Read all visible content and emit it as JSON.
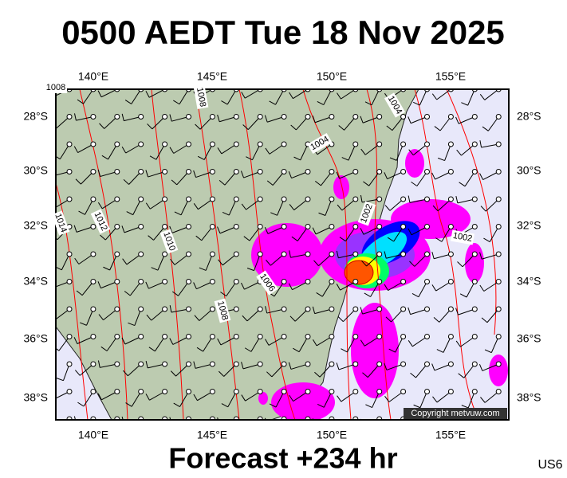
{
  "header": {
    "title": "0500 AEDT Tue 18 Nov 2025"
  },
  "map": {
    "lon_labels": [
      "140°E",
      "145°E",
      "150°E",
      "155°E"
    ],
    "lat_labels": [
      "28°S",
      "30°S",
      "32°S",
      "34°S",
      "36°S",
      "38°S"
    ],
    "isobar_labels": [
      "1014",
      "1012",
      "1010",
      "1008",
      "1006",
      "1004",
      "1002",
      "1008",
      "1004",
      "1002",
      "1008"
    ],
    "copyright": "Copyright metvuw.com"
  },
  "footer": {
    "forecast": "Forecast +234 hr",
    "code": "US6"
  }
}
